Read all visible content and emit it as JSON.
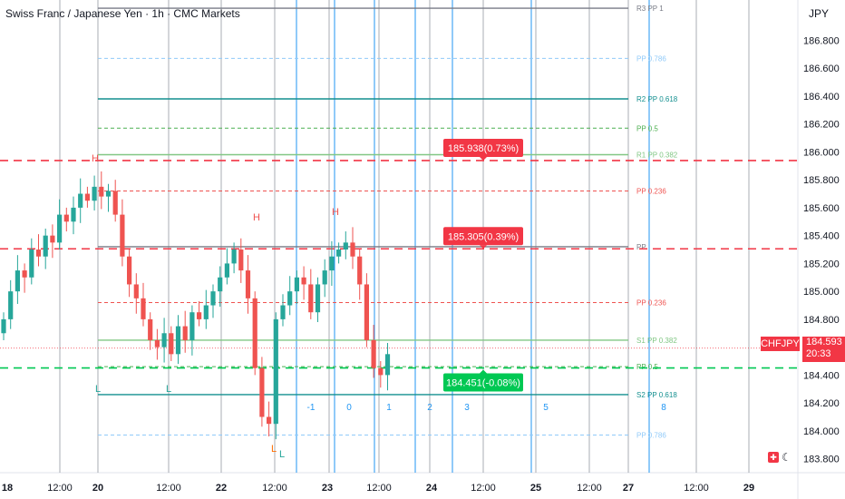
{
  "header": {
    "title": "Swiss Franc / Japanese Yen · 1h · CMC Markets"
  },
  "currency": "JPY",
  "symbol_badge": {
    "symbol": "CHFJPY",
    "price": "184.593",
    "countdown": "20:33"
  },
  "colors": {
    "up": "#26a69a",
    "down": "#ef5350",
    "red_line": "#f23645",
    "green_line": "#00c853",
    "pivot_teal": "#138f8f",
    "light_green": "#81c784",
    "blue": "#2196f3"
  },
  "chart_data": {
    "type": "candlestick",
    "symbol": "CHFJPY",
    "interval": "1h",
    "ylim": [
      183.7,
      187.05
    ],
    "y_ticks": [
      "186.800",
      "186.600",
      "186.400",
      "186.200",
      "186.000",
      "185.800",
      "185.600",
      "185.400",
      "185.200",
      "185.000",
      "184.800",
      "184.600",
      "184.400",
      "184.200",
      "184.000",
      "183.800"
    ],
    "x_ticks": [
      "18",
      "12:00",
      "20",
      "12:00",
      "22",
      "12:00",
      "23",
      "12:00",
      "24",
      "12:00",
      "25",
      "12:00",
      "27",
      "12:00",
      "29"
    ],
    "x_tick_bold": [
      "18",
      "20",
      "22",
      "23",
      "24",
      "25",
      "27",
      "29"
    ],
    "closes": [
      184.8,
      185.0,
      185.15,
      185.1,
      185.3,
      185.25,
      185.4,
      185.35,
      185.55,
      185.5,
      185.6,
      185.7,
      185.65,
      185.75,
      185.68,
      185.72,
      185.55,
      185.25,
      185.05,
      184.95,
      184.8,
      184.65,
      184.6,
      184.7,
      184.55,
      184.75,
      184.65,
      184.85,
      184.8,
      184.9,
      185.0,
      185.1,
      185.2,
      185.3,
      185.15,
      184.95,
      184.45,
      184.1,
      184.05,
      184.8,
      184.9,
      185.0,
      185.1,
      185.05,
      184.85,
      185.05,
      185.15,
      185.25,
      185.3,
      185.35,
      185.25,
      185.05,
      184.65,
      184.45,
      184.4,
      184.55
    ],
    "levels": [
      {
        "label": "R3 PP 1",
        "value": 187.03,
        "style": "solid",
        "color": "#787b86"
      },
      {
        "label": "PP 0.786",
        "value": 186.67,
        "style": "dashed",
        "color": "#90caf9"
      },
      {
        "label": "R2 PP 0.618",
        "value": 186.38,
        "style": "solid",
        "color": "#138f8f"
      },
      {
        "label": "PP 0.5",
        "value": 186.17,
        "style": "dashed",
        "color": "#4caf50"
      },
      {
        "label": "R1 PP 0.382",
        "value": 185.98,
        "style": "solid",
        "color": "#81c784"
      },
      {
        "label": "PP 0.236",
        "value": 185.72,
        "style": "dashed",
        "color": "#ef5350"
      },
      {
        "label": "PP",
        "value": 185.32,
        "style": "solid",
        "color": "#787b86"
      },
      {
        "label": "PP 0.236",
        "value": 184.92,
        "style": "dashed",
        "color": "#ef5350"
      },
      {
        "label": "S1 PP 0.382",
        "value": 184.65,
        "style": "solid",
        "color": "#81c784"
      },
      {
        "label": "PP 0.5",
        "value": 184.46,
        "style": "dashed",
        "color": "#4caf50"
      },
      {
        "label": "S2 PP 0.618",
        "value": 184.26,
        "style": "solid",
        "color": "#138f8f"
      },
      {
        "label": "PP 0.786",
        "value": 183.97,
        "style": "dashed",
        "color": "#90caf9"
      }
    ],
    "targets": [
      {
        "text": "185.938(0.73%)",
        "value": 185.938,
        "color": "#f23645"
      },
      {
        "text": "185.305(0.39%)",
        "value": 185.305,
        "color": "#f23645"
      },
      {
        "text": "184.451(-0.08%)",
        "value": 184.451,
        "color": "#00c853"
      }
    ],
    "fib_time_labels": [
      "-1",
      "0",
      "1",
      "2",
      "3",
      "5",
      "8"
    ],
    "pattern_labels": [
      "H",
      "H",
      "H",
      "L",
      "L",
      "L",
      "L"
    ]
  }
}
